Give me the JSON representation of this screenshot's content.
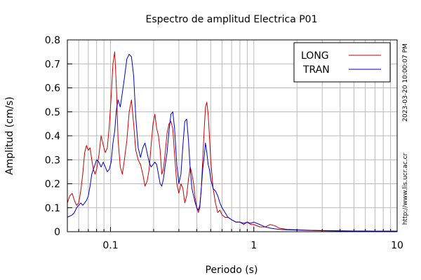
{
  "chart_data": {
    "type": "line",
    "title": "Espectro de amplitud Electrica P01",
    "xlabel": "Periodo (s)",
    "ylabel": "Amplitud (cm/s)",
    "x_scale": "log",
    "xlim": [
      0.05,
      10
    ],
    "ylim": [
      0,
      0.8
    ],
    "x_tick_labels": [
      {
        "value": 0.1,
        "label": "0.1"
      },
      {
        "value": 1,
        "label": "1"
      },
      {
        "value": 10,
        "label": "10"
      }
    ],
    "y_tick_labels": [
      {
        "value": 0,
        "label": "0"
      },
      {
        "value": 0.1,
        "label": "0.1"
      },
      {
        "value": 0.2,
        "label": "0.2"
      },
      {
        "value": 0.3,
        "label": "0.3"
      },
      {
        "value": 0.4,
        "label": "0.4"
      },
      {
        "value": 0.5,
        "label": "0.5"
      },
      {
        "value": 0.6,
        "label": "0.6"
      },
      {
        "value": 0.7,
        "label": "0.7"
      },
      {
        "value": 0.8,
        "label": "0.8"
      }
    ],
    "grid": true,
    "legend_position": "top-right",
    "side_labels": {
      "right_top": "2023-03-20 10:00:07 PM",
      "right_bottom": "http://www.lis.ucr.ac.cr"
    },
    "series": [
      {
        "name": "LONG",
        "color": "#cc0000",
        "points": [
          [
            0.05,
            0.12
          ],
          [
            0.052,
            0.15
          ],
          [
            0.054,
            0.16
          ],
          [
            0.056,
            0.13
          ],
          [
            0.058,
            0.11
          ],
          [
            0.06,
            0.12
          ],
          [
            0.062,
            0.17
          ],
          [
            0.064,
            0.24
          ],
          [
            0.066,
            0.33
          ],
          [
            0.068,
            0.36
          ],
          [
            0.07,
            0.34
          ],
          [
            0.072,
            0.35
          ],
          [
            0.074,
            0.3
          ],
          [
            0.076,
            0.26
          ],
          [
            0.078,
            0.24
          ],
          [
            0.08,
            0.26
          ],
          [
            0.083,
            0.32
          ],
          [
            0.086,
            0.4
          ],
          [
            0.089,
            0.36
          ],
          [
            0.092,
            0.33
          ],
          [
            0.095,
            0.35
          ],
          [
            0.098,
            0.44
          ],
          [
            0.101,
            0.56
          ],
          [
            0.104,
            0.7
          ],
          [
            0.107,
            0.75
          ],
          [
            0.11,
            0.6
          ],
          [
            0.113,
            0.38
          ],
          [
            0.117,
            0.27
          ],
          [
            0.121,
            0.24
          ],
          [
            0.125,
            0.3
          ],
          [
            0.13,
            0.38
          ],
          [
            0.135,
            0.5
          ],
          [
            0.14,
            0.55
          ],
          [
            0.145,
            0.45
          ],
          [
            0.15,
            0.34
          ],
          [
            0.156,
            0.3
          ],
          [
            0.162,
            0.28
          ],
          [
            0.168,
            0.24
          ],
          [
            0.174,
            0.19
          ],
          [
            0.18,
            0.21
          ],
          [
            0.186,
            0.26
          ],
          [
            0.192,
            0.36
          ],
          [
            0.198,
            0.45
          ],
          [
            0.204,
            0.49
          ],
          [
            0.21,
            0.43
          ],
          [
            0.216,
            0.4
          ],
          [
            0.222,
            0.34
          ],
          [
            0.228,
            0.24
          ],
          [
            0.234,
            0.26
          ],
          [
            0.24,
            0.32
          ],
          [
            0.248,
            0.41
          ],
          [
            0.256,
            0.45
          ],
          [
            0.264,
            0.46
          ],
          [
            0.272,
            0.43
          ],
          [
            0.28,
            0.32
          ],
          [
            0.29,
            0.2
          ],
          [
            0.3,
            0.16
          ],
          [
            0.31,
            0.2
          ],
          [
            0.32,
            0.18
          ],
          [
            0.33,
            0.12
          ],
          [
            0.34,
            0.15
          ],
          [
            0.35,
            0.22
          ],
          [
            0.36,
            0.27
          ],
          [
            0.37,
            0.24
          ],
          [
            0.38,
            0.2
          ],
          [
            0.39,
            0.14
          ],
          [
            0.4,
            0.1
          ],
          [
            0.41,
            0.08
          ],
          [
            0.42,
            0.1
          ],
          [
            0.43,
            0.18
          ],
          [
            0.44,
            0.3
          ],
          [
            0.45,
            0.42
          ],
          [
            0.46,
            0.52
          ],
          [
            0.47,
            0.54
          ],
          [
            0.48,
            0.49
          ],
          [
            0.49,
            0.4
          ],
          [
            0.5,
            0.3
          ],
          [
            0.52,
            0.18
          ],
          [
            0.54,
            0.12
          ],
          [
            0.56,
            0.08
          ],
          [
            0.58,
            0.09
          ],
          [
            0.6,
            0.07
          ],
          [
            0.63,
            0.06
          ],
          [
            0.66,
            0.06
          ],
          [
            0.7,
            0.05
          ],
          [
            0.75,
            0.04
          ],
          [
            0.8,
            0.04
          ],
          [
            0.85,
            0.03
          ],
          [
            0.9,
            0.04
          ],
          [
            0.95,
            0.03
          ],
          [
            1.0,
            0.03
          ],
          [
            1.1,
            0.02
          ],
          [
            1.2,
            0.02
          ],
          [
            1.3,
            0.03
          ],
          [
            1.4,
            0.025
          ],
          [
            1.5,
            0.015
          ],
          [
            1.7,
            0.01
          ],
          [
            2.0,
            0.008
          ],
          [
            2.5,
            0.006
          ],
          [
            3.0,
            0.005
          ],
          [
            4.0,
            0.004
          ],
          [
            5.0,
            0.003
          ],
          [
            7.0,
            0.002
          ],
          [
            9.0,
            0.002
          ],
          [
            10.0,
            0.002
          ]
        ]
      },
      {
        "name": "TRAN",
        "color": "#0000cc",
        "points": [
          [
            0.05,
            0.06
          ],
          [
            0.052,
            0.065
          ],
          [
            0.054,
            0.07
          ],
          [
            0.056,
            0.08
          ],
          [
            0.058,
            0.1
          ],
          [
            0.06,
            0.11
          ],
          [
            0.062,
            0.12
          ],
          [
            0.064,
            0.11
          ],
          [
            0.066,
            0.12
          ],
          [
            0.068,
            0.13
          ],
          [
            0.07,
            0.15
          ],
          [
            0.072,
            0.19
          ],
          [
            0.074,
            0.24
          ],
          [
            0.076,
            0.26
          ],
          [
            0.078,
            0.28
          ],
          [
            0.08,
            0.3
          ],
          [
            0.083,
            0.29
          ],
          [
            0.086,
            0.27
          ],
          [
            0.089,
            0.29
          ],
          [
            0.092,
            0.27
          ],
          [
            0.095,
            0.25
          ],
          [
            0.098,
            0.26
          ],
          [
            0.101,
            0.29
          ],
          [
            0.104,
            0.37
          ],
          [
            0.107,
            0.42
          ],
          [
            0.11,
            0.51
          ],
          [
            0.113,
            0.55
          ],
          [
            0.117,
            0.52
          ],
          [
            0.121,
            0.58
          ],
          [
            0.125,
            0.64
          ],
          [
            0.13,
            0.72
          ],
          [
            0.135,
            0.74
          ],
          [
            0.14,
            0.73
          ],
          [
            0.145,
            0.65
          ],
          [
            0.15,
            0.48
          ],
          [
            0.156,
            0.35
          ],
          [
            0.162,
            0.31
          ],
          [
            0.168,
            0.35
          ],
          [
            0.174,
            0.37
          ],
          [
            0.18,
            0.33
          ],
          [
            0.186,
            0.29
          ],
          [
            0.192,
            0.27
          ],
          [
            0.198,
            0.28
          ],
          [
            0.204,
            0.29
          ],
          [
            0.21,
            0.28
          ],
          [
            0.216,
            0.24
          ],
          [
            0.222,
            0.2
          ],
          [
            0.228,
            0.19
          ],
          [
            0.234,
            0.22
          ],
          [
            0.24,
            0.27
          ],
          [
            0.248,
            0.33
          ],
          [
            0.256,
            0.42
          ],
          [
            0.264,
            0.49
          ],
          [
            0.272,
            0.5
          ],
          [
            0.28,
            0.43
          ],
          [
            0.29,
            0.28
          ],
          [
            0.3,
            0.2
          ],
          [
            0.31,
            0.24
          ],
          [
            0.32,
            0.36
          ],
          [
            0.33,
            0.46
          ],
          [
            0.34,
            0.47
          ],
          [
            0.35,
            0.38
          ],
          [
            0.36,
            0.26
          ],
          [
            0.37,
            0.18
          ],
          [
            0.38,
            0.15
          ],
          [
            0.39,
            0.12
          ],
          [
            0.4,
            0.1
          ],
          [
            0.41,
            0.09
          ],
          [
            0.42,
            0.11
          ],
          [
            0.43,
            0.18
          ],
          [
            0.44,
            0.26
          ],
          [
            0.45,
            0.31
          ],
          [
            0.46,
            0.37
          ],
          [
            0.47,
            0.33
          ],
          [
            0.48,
            0.28
          ],
          [
            0.49,
            0.26
          ],
          [
            0.5,
            0.22
          ],
          [
            0.52,
            0.18
          ],
          [
            0.54,
            0.17
          ],
          [
            0.56,
            0.15
          ],
          [
            0.58,
            0.12
          ],
          [
            0.6,
            0.1
          ],
          [
            0.63,
            0.08
          ],
          [
            0.66,
            0.06
          ],
          [
            0.7,
            0.05
          ],
          [
            0.75,
            0.04
          ],
          [
            0.8,
            0.04
          ],
          [
            0.85,
            0.035
          ],
          [
            0.9,
            0.04
          ],
          [
            0.95,
            0.035
          ],
          [
            1.0,
            0.04
          ],
          [
            1.1,
            0.03
          ],
          [
            1.2,
            0.02
          ],
          [
            1.3,
            0.015
          ],
          [
            1.4,
            0.012
          ],
          [
            1.5,
            0.01
          ],
          [
            1.7,
            0.008
          ],
          [
            2.0,
            0.007
          ],
          [
            2.5,
            0.005
          ],
          [
            3.0,
            0.004
          ],
          [
            4.0,
            0.003
          ],
          [
            5.0,
            0.003
          ],
          [
            7.0,
            0.002
          ],
          [
            9.0,
            0.002
          ],
          [
            10.0,
            0.002
          ]
        ]
      }
    ]
  }
}
